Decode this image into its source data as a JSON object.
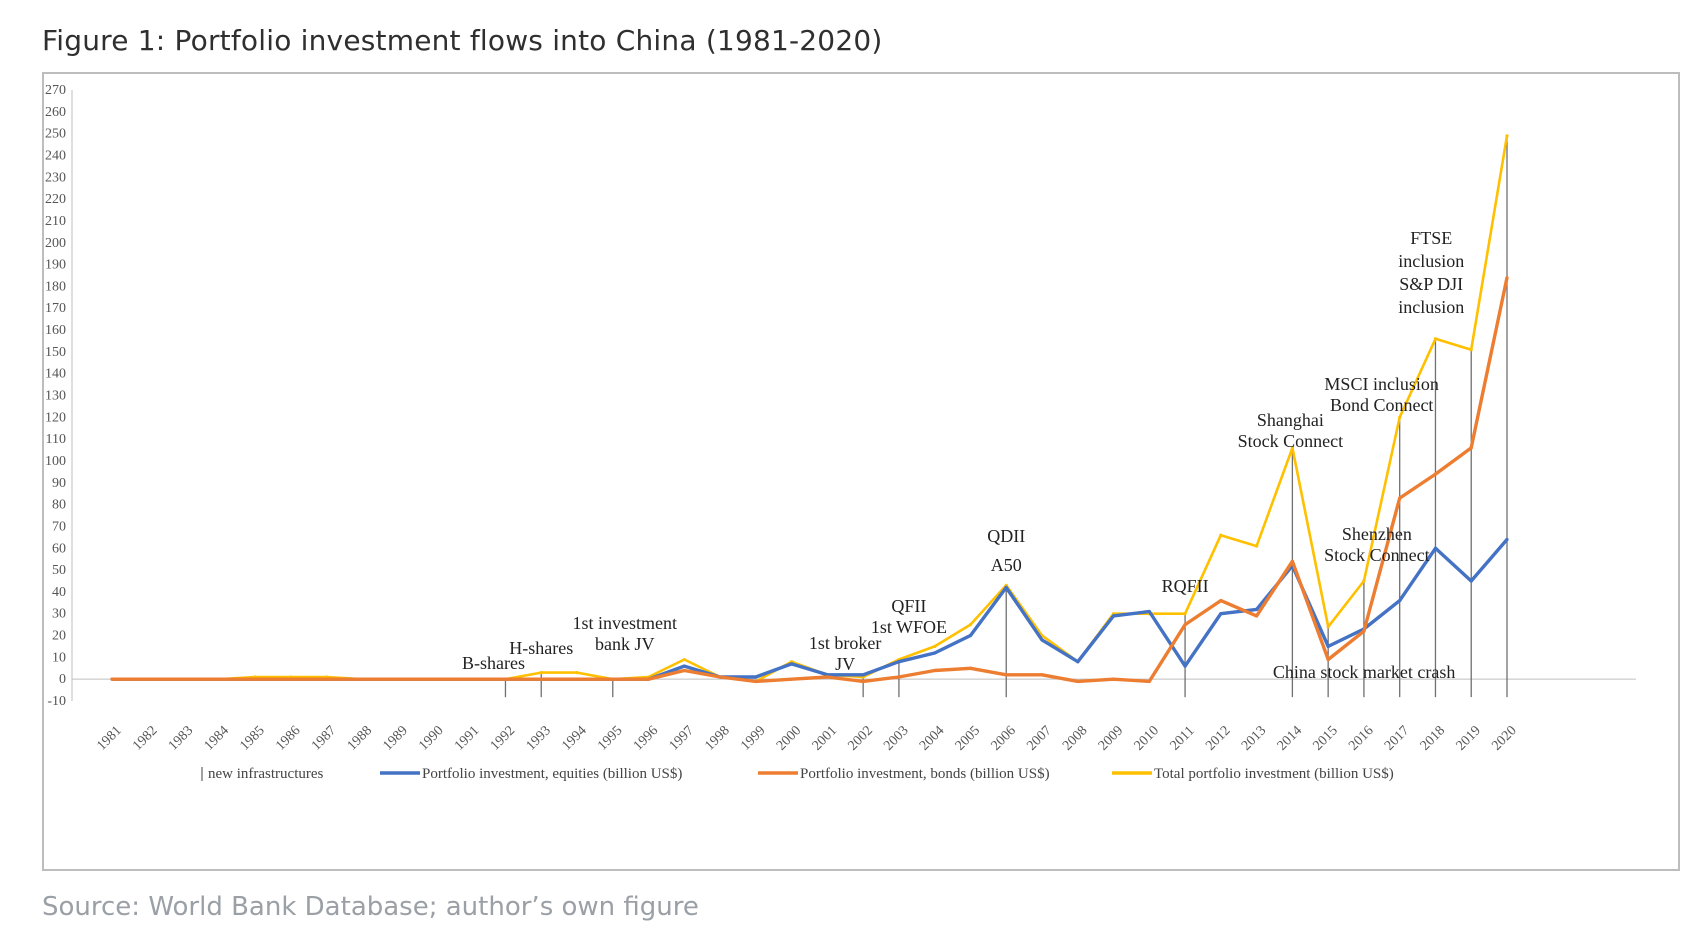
{
  "figure": {
    "title": "Figure 1: Portfolio investment flows into China (1981-2020)",
    "source": "Source: World Bank Database; author’s own figure"
  },
  "chart_data": {
    "type": "line",
    "title": "Figure 1: Portfolio investment flows into China (1981-2020)",
    "xlabel": "",
    "ylabel": "",
    "ylim": [
      -10,
      270
    ],
    "yticks": [
      -10,
      0,
      10,
      20,
      30,
      40,
      50,
      60,
      70,
      80,
      90,
      100,
      110,
      120,
      130,
      140,
      150,
      160,
      170,
      180,
      190,
      200,
      210,
      220,
      230,
      240,
      250,
      260,
      270
    ],
    "grid": false,
    "legend_position": "bottom",
    "categories": [
      "1981",
      "1982",
      "1983",
      "1984",
      "1985",
      "1986",
      "1987",
      "1988",
      "1989",
      "1990",
      "1991",
      "1992",
      "1993",
      "1994",
      "1995",
      "1996",
      "1997",
      "1998",
      "1999",
      "2000",
      "2001",
      "2002",
      "2003",
      "2004",
      "2005",
      "2006",
      "2007",
      "2008",
      "2009",
      "2010",
      "2011",
      "2012",
      "2013",
      "2014",
      "2015",
      "2016",
      "2017",
      "2018",
      "2019",
      "2020"
    ],
    "series": [
      {
        "name": "Portfolio investment, equities (billion US$)",
        "color": "#4472c4",
        "values": [
          0,
          0,
          0,
          0,
          0,
          0,
          0,
          0,
          0,
          0,
          0,
          0,
          0,
          0,
          0,
          0,
          6,
          1,
          1,
          7,
          2,
          2,
          8,
          12,
          20,
          42,
          18,
          8,
          29,
          31,
          6,
          30,
          32,
          52,
          15,
          23,
          36,
          60,
          45,
          64
        ]
      },
      {
        "name": "Portfolio investment, bonds (billion US$)",
        "color": "#ed7d31",
        "values": [
          0,
          0,
          0,
          0,
          0,
          0,
          0,
          0,
          0,
          0,
          0,
          0,
          0,
          0,
          0,
          0,
          4,
          1,
          -1,
          0,
          1,
          -1,
          1,
          4,
          5,
          2,
          2,
          -1,
          0,
          -1,
          25,
          36,
          29,
          54,
          9,
          22,
          83,
          94,
          106,
          184
        ]
      },
      {
        "name": "Total portfolio investment (billion US$)",
        "color": "#ffc000",
        "values": [
          0,
          0,
          0,
          0,
          1,
          1,
          1,
          0,
          0,
          0,
          0,
          0,
          3,
          3,
          0,
          1,
          9,
          1,
          -1,
          8,
          2,
          1,
          9,
          15,
          25,
          43,
          20,
          8,
          30,
          30,
          30,
          66,
          61,
          106,
          24,
          45,
          120,
          156,
          151,
          249
        ]
      }
    ],
    "infrastructure_series_name": "new infrastructures",
    "infrastructure_years": [
      "1992",
      "1993",
      "1995",
      "2002",
      "2003",
      "2006",
      "2011",
      "2014",
      "2015",
      "2016",
      "2017",
      "2018",
      "2019",
      "2020"
    ],
    "annotations": [
      {
        "lines": [
          "B-shares"
        ],
        "year": "1992"
      },
      {
        "lines": [
          "H-shares"
        ],
        "year": "1993"
      },
      {
        "lines": [
          "1st investment",
          "bank JV"
        ],
        "year": "1995"
      },
      {
        "lines": [
          "1st broker",
          "JV"
        ],
        "year": "2002"
      },
      {
        "lines": [
          "QFII",
          "1st WFOE"
        ],
        "year": "2003"
      },
      {
        "lines": [
          "QDII",
          "A50"
        ],
        "year": "2006"
      },
      {
        "lines": [
          "RQFII"
        ],
        "year": "2011"
      },
      {
        "lines": [
          "Shanghai",
          "Stock Connect"
        ],
        "year": "2014"
      },
      {
        "lines": [
          "China stock market crash"
        ],
        "year": "2015"
      },
      {
        "lines": [
          "Shenzhen",
          "Stock Connect"
        ],
        "year": "2016"
      },
      {
        "lines": [
          "MSCI inclusion",
          "Bond Connect"
        ],
        "year": "2017"
      },
      {
        "lines": [
          "FTSE",
          "inclusion",
          "S&P DJI",
          "inclusion"
        ],
        "year": "2019"
      }
    ]
  }
}
